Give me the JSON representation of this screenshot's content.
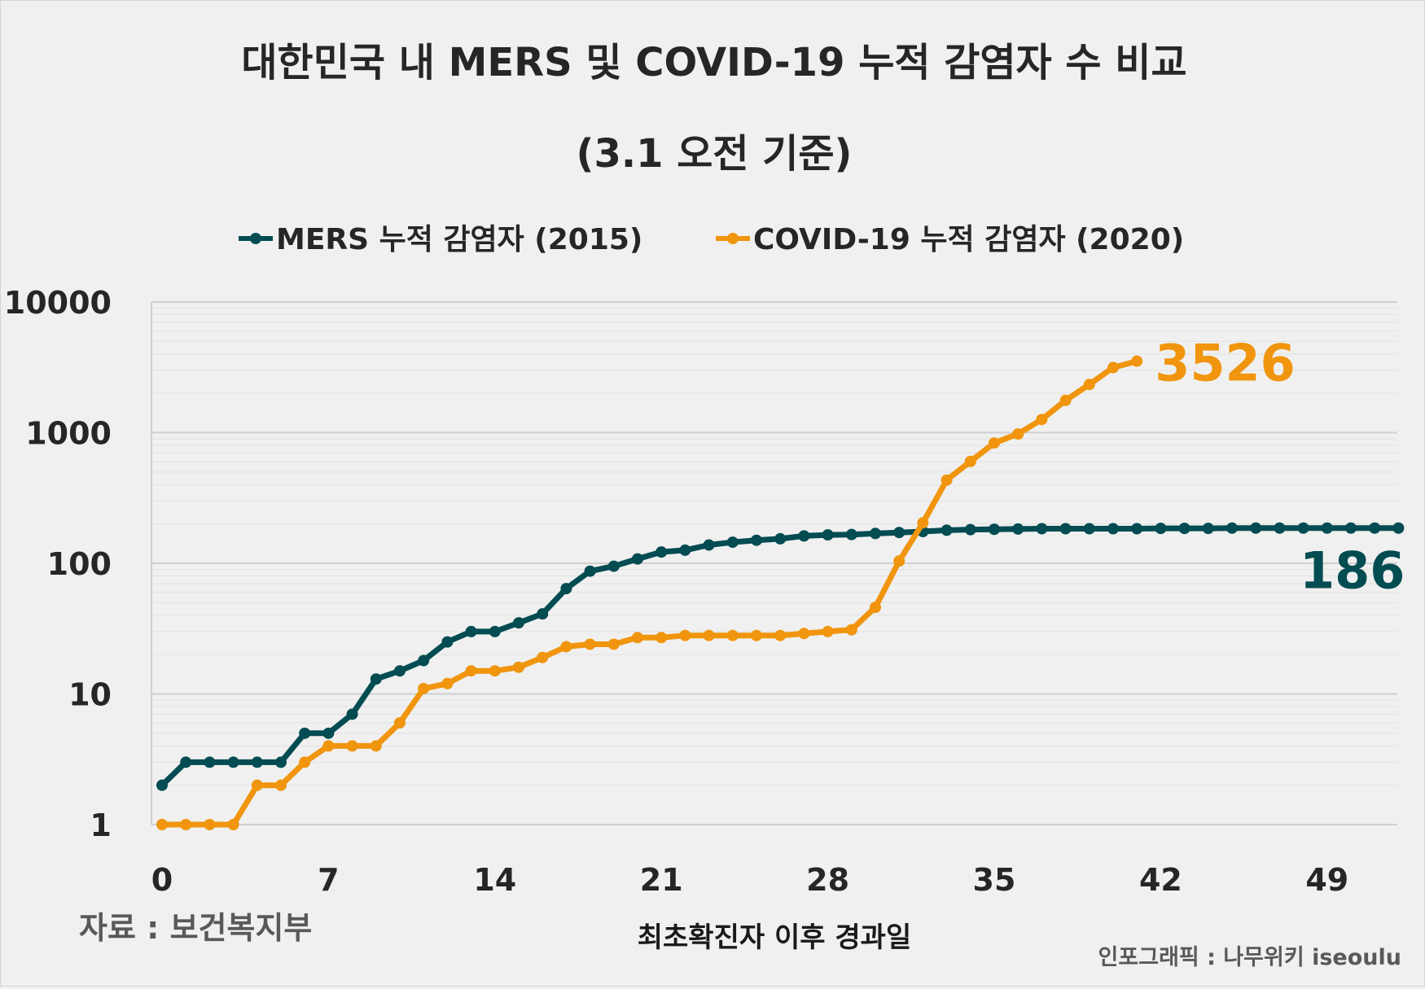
{
  "chart_data": {
    "type": "line",
    "title": "대한민국 내 MERS 및 COVID-19 누적 감염자 수 비교",
    "subtitle": "(3.1 오전 기준)",
    "xlabel": "최초확진자 이후 경과일",
    "ylabel": "",
    "yscale": "log",
    "ylim": [
      1,
      10000
    ],
    "xlim": [
      0,
      52
    ],
    "x_ticks": [
      0,
      7,
      14,
      21,
      28,
      35,
      42,
      49
    ],
    "y_ticks": [
      1,
      10,
      100,
      1000,
      10000
    ],
    "y_tick_labels": [
      "1",
      "10",
      "100",
      "1000",
      "10000"
    ],
    "legend_position": "top-center",
    "grid": true,
    "source": "자료 : 보건복지부",
    "credit": "인포그래픽 : 나무위키 iseoulu",
    "series": [
      {
        "name": "MERS 누적 감염자 (2015)",
        "color": "#024c52",
        "end_label": "186",
        "x": [
          0,
          1,
          2,
          3,
          4,
          5,
          6,
          7,
          8,
          9,
          10,
          11,
          12,
          13,
          14,
          15,
          16,
          17,
          18,
          19,
          20,
          21,
          22,
          23,
          24,
          25,
          26,
          27,
          28,
          29,
          30,
          31,
          32,
          33,
          34,
          35,
          36,
          37,
          38,
          39,
          40,
          41,
          42,
          43,
          44,
          45,
          46,
          47,
          48,
          49,
          50,
          51,
          52
        ],
        "values": [
          2,
          3,
          3,
          3,
          3,
          3,
          5,
          5,
          7,
          13,
          15,
          18,
          25,
          30,
          30,
          35,
          41,
          64,
          87,
          95,
          108,
          122,
          126,
          138,
          145,
          150,
          154,
          162,
          165,
          166,
          169,
          172,
          175,
          179,
          181,
          182,
          183,
          184,
          184,
          184,
          184,
          184,
          185,
          185,
          185,
          186,
          186,
          186,
          186,
          186,
          186,
          186,
          186
        ]
      },
      {
        "name": "COVID-19 누적 감염자 (2020)",
        "color": "#f0950d",
        "end_label": "3526",
        "x": [
          0,
          1,
          2,
          3,
          4,
          5,
          6,
          7,
          8,
          9,
          10,
          11,
          12,
          13,
          14,
          15,
          16,
          17,
          18,
          19,
          20,
          21,
          22,
          23,
          24,
          25,
          26,
          27,
          28,
          29,
          30,
          31,
          32,
          33,
          34,
          35,
          36,
          37,
          38,
          39,
          40,
          41
        ],
        "values": [
          1,
          1,
          1,
          1,
          2,
          2,
          3,
          4,
          4,
          4,
          6,
          11,
          12,
          15,
          15,
          16,
          19,
          23,
          24,
          24,
          27,
          27,
          28,
          28,
          28,
          28,
          28,
          29,
          30,
          31,
          46,
          104,
          204,
          433,
          602,
          833,
          977,
          1261,
          1766,
          2337,
          3150,
          3526
        ]
      }
    ]
  }
}
